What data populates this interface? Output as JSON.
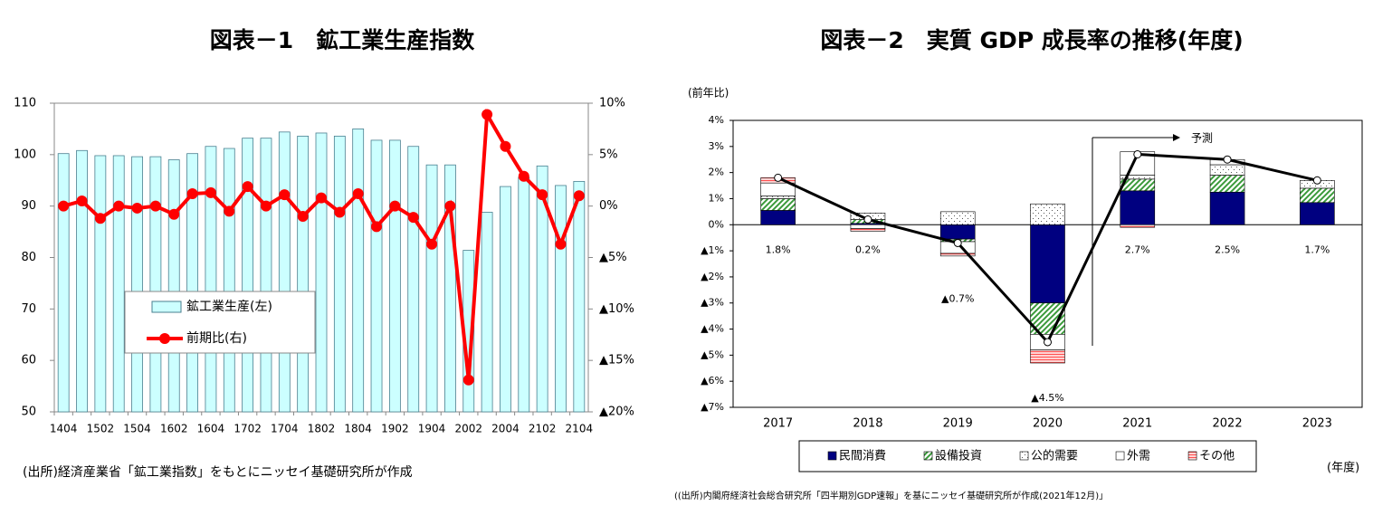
{
  "chart_data": [
    {
      "type": "bar",
      "title": "図表－1　鉱工業生産指数",
      "source": "(出所)経済産業省「鉱工業指数」をもとにニッセイ基礎研究所が作成",
      "categories": [
        "1404",
        null,
        "1502",
        null,
        "1504",
        null,
        "1602",
        null,
        "1604",
        null,
        "1702",
        null,
        "1704",
        null,
        "1802",
        null,
        "1804",
        null,
        "1902",
        null,
        "1904",
        null,
        "2002",
        null,
        "2004",
        null,
        "2102",
        null,
        "2104"
      ],
      "series": [
        {
          "name": "鉱工業生産(左)",
          "type": "bar",
          "color": "#ccffff",
          "values": [
            100.2,
            100.8,
            99.8,
            99.8,
            99.6,
            99.6,
            99.0,
            100.2,
            101.6,
            101.2,
            103.2,
            103.2,
            104.4,
            103.6,
            104.2,
            103.6,
            105.0,
            102.8,
            102.8,
            101.6,
            98.0,
            98.0,
            81.4,
            88.8,
            93.8,
            95.6,
            97.8,
            94.0,
            94.8
          ]
        },
        {
          "name": "前期比(右)",
          "type": "line",
          "axis": "y2",
          "color": "#ff0000",
          "values": [
            0,
            0.5,
            -1.2,
            0,
            -0.2,
            0,
            -0.8,
            1.2,
            1.3,
            -0.5,
            1.9,
            0,
            1.1,
            -1.0,
            0.8,
            -0.6,
            1.2,
            -2.0,
            0,
            -1.1,
            -3.7,
            0,
            -16.9,
            8.9,
            5.8,
            2.9,
            1.1,
            -3.7,
            1.0
          ]
        }
      ],
      "ylim": [
        50,
        110
      ],
      "yticks": [
        50,
        60,
        70,
        80,
        90,
        100,
        110
      ],
      "y2lim": [
        -20,
        10
      ],
      "y2ticks": [
        {
          "value": -20,
          "label": "▲20%"
        },
        {
          "value": -15,
          "label": "▲15%"
        },
        {
          "value": -10,
          "label": "▲10%"
        },
        {
          "value": -5,
          "label": "▲5%"
        },
        {
          "value": 0,
          "label": "0%"
        },
        {
          "value": 5,
          "label": "5%"
        },
        {
          "value": 10,
          "label": "10%"
        }
      ],
      "grid": false,
      "legend": "center left"
    },
    {
      "type": "bar",
      "stacked": true,
      "title": "図表－2　実質 GDP 成長率の推移(年度)",
      "ylabel": "(前年比)",
      "xlabel": "(年度)",
      "annotation": "予測",
      "source": "((出所)内閣府経済社会総合研究所「四半期別GDP速報」を基にニッセイ基礎研究所が作成(2021年12月)」",
      "categories": [
        "2017",
        "2018",
        "2019",
        "2020",
        "2021",
        "2022",
        "2023"
      ],
      "series": [
        {
          "name": "民間消費",
          "type": "bar",
          "color": "#000080",
          "values": [
            0.55,
            0.05,
            -0.55,
            -3.0,
            1.3,
            1.25,
            0.85
          ]
        },
        {
          "name": "設備投資",
          "type": "bar",
          "color": "#3a9a3a",
          "pattern": "diagonal",
          "values": [
            0.45,
            0.15,
            -0.1,
            -1.2,
            0.45,
            0.65,
            0.55
          ]
        },
        {
          "name": "公的需要",
          "type": "bar",
          "color": "#555555",
          "pattern": "dots",
          "values": [
            0.1,
            0.25,
            0.5,
            0.8,
            0.15,
            0.4,
            0.3
          ]
        },
        {
          "name": "外需",
          "type": "bar",
          "color": "#ffffff",
          "values": [
            0.5,
            -0.15,
            -0.45,
            -0.6,
            0.9,
            0.2,
            0
          ]
        },
        {
          "name": "その他",
          "type": "bar",
          "color": "#ff5050",
          "pattern": "horizontal",
          "values": [
            0.2,
            -0.1,
            -0.1,
            -0.5,
            -0.1,
            0,
            0
          ]
        },
        {
          "type": "line",
          "color": "#000000",
          "values": [
            1.8,
            0.2,
            -0.7,
            -4.5,
            2.7,
            2.5,
            1.7
          ],
          "value_labels": [
            "1.8%",
            "0.2%",
            "▲0.7%",
            "▲4.5%",
            "2.7%",
            "2.5%",
            "1.7%"
          ]
        }
      ],
      "ylim": [
        -7,
        4
      ],
      "yticks": [
        {
          "value": -7,
          "label": "▲7%"
        },
        {
          "value": -6,
          "label": "▲6%"
        },
        {
          "value": -5,
          "label": "▲5%"
        },
        {
          "value": -4,
          "label": "▲4%"
        },
        {
          "value": -3,
          "label": "▲3%"
        },
        {
          "value": -2,
          "label": "▲2%"
        },
        {
          "value": -1,
          "label": "▲1%"
        },
        {
          "value": 0,
          "label": "0%"
        },
        {
          "value": 1,
          "label": "1%"
        },
        {
          "value": 2,
          "label": "2%"
        },
        {
          "value": 3,
          "label": "3%"
        },
        {
          "value": 4,
          "label": "4%"
        }
      ],
      "grid": false,
      "legend": "bottom"
    }
  ]
}
